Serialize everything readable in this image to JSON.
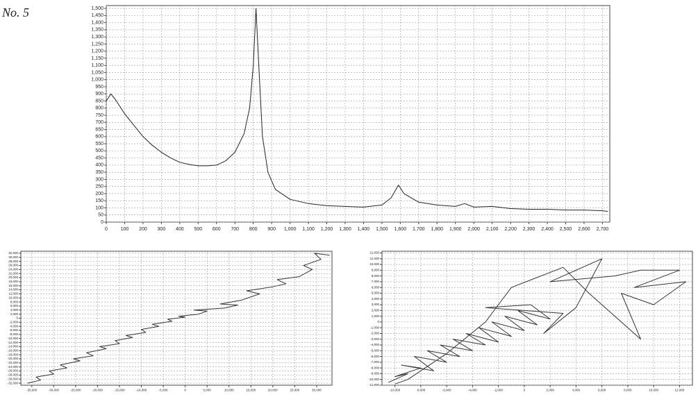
{
  "label": "No. 5",
  "chart_data": [
    {
      "type": "line",
      "grid": true,
      "color": "#222222",
      "x": [
        0,
        25,
        50,
        100,
        150,
        200,
        250,
        300,
        350,
        400,
        450,
        500,
        550,
        600,
        650,
        700,
        750,
        780,
        800,
        815,
        830,
        850,
        880,
        920,
        1000,
        1100,
        1200,
        1300,
        1400,
        1500,
        1550,
        1590,
        1620,
        1700,
        1800,
        1900,
        1950,
        2000,
        2100,
        2200,
        2300,
        2400,
        2500,
        2600,
        2700,
        2730
      ],
      "values": [
        850,
        900,
        860,
        760,
        680,
        600,
        540,
        490,
        450,
        420,
        405,
        395,
        395,
        400,
        430,
        490,
        620,
        800,
        1100,
        1500,
        1100,
        600,
        350,
        230,
        160,
        130,
        115,
        110,
        105,
        120,
        170,
        260,
        200,
        140,
        120,
        110,
        130,
        105,
        110,
        95,
        90,
        90,
        85,
        85,
        80,
        75
      ],
      "xlim": [
        0,
        2740
      ],
      "ylim": [
        0,
        1520
      ],
      "xticks": [
        0,
        100,
        200,
        300,
        400,
        500,
        600,
        700,
        800,
        900,
        {
          "value": 1000,
          "label": "1,000"
        },
        {
          "value": 1100,
          "label": "1,100"
        },
        {
          "value": 1200,
          "label": "1,200"
        },
        {
          "value": 1300,
          "label": "1,300"
        },
        {
          "value": 1400,
          "label": "1,400"
        },
        {
          "value": 1500,
          "label": "1,500"
        },
        {
          "value": 1600,
          "label": "1,600"
        },
        {
          "value": 1700,
          "label": "1,700"
        },
        {
          "value": 1800,
          "label": "1,800"
        },
        {
          "value": 1900,
          "label": "1,900"
        },
        {
          "value": 2000,
          "label": "2,000"
        },
        {
          "value": 2100,
          "label": "2,100"
        },
        {
          "value": 2200,
          "label": "2,200"
        },
        {
          "value": 2300,
          "label": "2,300"
        },
        {
          "value": 2400,
          "label": "2,400"
        },
        {
          "value": 2500,
          "label": "2,500"
        },
        {
          "value": 2600,
          "label": "2,600"
        },
        {
          "value": 2700,
          "label": "2,700"
        }
      ],
      "yticks": [
        0,
        50,
        100,
        150,
        200,
        250,
        300,
        350,
        400,
        450,
        500,
        550,
        600,
        650,
        700,
        750,
        800,
        850,
        900,
        950,
        {
          "value": 1000,
          "label": "1,000"
        },
        {
          "value": 1050,
          "label": "1,050"
        },
        {
          "value": 1100,
          "label": "1,100"
        },
        {
          "value": 1150,
          "label": "1,150"
        },
        {
          "value": 1200,
          "label": "1,200"
        },
        {
          "value": 1250,
          "label": "1,250"
        },
        {
          "value": 1300,
          "label": "1,300"
        },
        {
          "value": 1350,
          "label": "1,350"
        },
        {
          "value": 1400,
          "label": "1,400"
        },
        {
          "value": 1450,
          "label": "1,450"
        },
        {
          "value": 1500,
          "label": "1,500"
        }
      ]
    },
    {
      "type": "line",
      "grid": true,
      "color": "#333333",
      "x": [
        -36000,
        -33000,
        -34000,
        -30000,
        -31000,
        -27000,
        -28500,
        -24000,
        -25500,
        -21000,
        -22500,
        -18000,
        -19500,
        -15000,
        -16000,
        -12000,
        -13500,
        -9000,
        -10000,
        -6000,
        -7500,
        -3000,
        -4000,
        0,
        -1500,
        3000,
        5000,
        2000,
        9000,
        12000,
        8000,
        13000,
        17000,
        14000,
        20000,
        23000,
        21000,
        26000,
        29000,
        27000,
        31000,
        29500,
        33000
      ],
      "values": [
        -32000,
        -30500,
        -29000,
        -27500,
        -26000,
        -24500,
        -23000,
        -21000,
        -20000,
        -18500,
        -17000,
        -15000,
        -14000,
        -12500,
        -11000,
        -9500,
        -8500,
        -7000,
        -5500,
        -4000,
        -3000,
        -1500,
        -500,
        500,
        1000,
        2000,
        3500,
        4000,
        5000,
        6500,
        7000,
        9000,
        12000,
        13500,
        15500,
        17000,
        19000,
        20500,
        24000,
        26000,
        29000,
        32000,
        31000
      ],
      "xlim": [
        -37500,
        33500
      ],
      "ylim": [
        -33000,
        33000
      ],
      "xticks": [
        {
          "value": -35000,
          "label": "-35,000"
        },
        {
          "value": -30000,
          "label": "-30,000"
        },
        {
          "value": -25000,
          "label": "-25,000"
        },
        {
          "value": -20000,
          "label": "-20,000"
        },
        {
          "value": -15000,
          "label": "-15,000"
        },
        {
          "value": -10000,
          "label": "-10,000"
        },
        {
          "value": -5000,
          "label": "-5,000"
        },
        0,
        {
          "value": 5000,
          "label": "5,000"
        },
        {
          "value": 10000,
          "label": "10,000"
        },
        {
          "value": 15000,
          "label": "15,000"
        },
        {
          "value": 20000,
          "label": "20,000"
        },
        {
          "value": 25000,
          "label": "25,000"
        },
        {
          "value": 30000,
          "label": "30,000"
        }
      ],
      "yticks": [
        {
          "value": -32000,
          "label": "-32,000"
        },
        {
          "value": -30000,
          "label": "-30,000"
        },
        {
          "value": -28000,
          "label": "-28,000"
        },
        {
          "value": -26000,
          "label": "-26,000"
        },
        {
          "value": -24000,
          "label": "-24,000"
        },
        {
          "value": -22000,
          "label": "-22,000"
        },
        {
          "value": -20000,
          "label": "-20,000"
        },
        {
          "value": -18000,
          "label": "-18,000"
        },
        {
          "value": -16000,
          "label": "-16,000"
        },
        {
          "value": -14000,
          "label": "-14,000"
        },
        {
          "value": -12000,
          "label": "-12,000"
        },
        {
          "value": -10000,
          "label": "-10,000"
        },
        {
          "value": -8000,
          "label": "-8,000"
        },
        {
          "value": -6000,
          "label": "-6,000"
        },
        {
          "value": -4000,
          "label": "-4,000"
        },
        {
          "value": -2000,
          "label": "-2,000"
        },
        0,
        {
          "value": 2000,
          "label": "2,000"
        },
        {
          "value": 4000,
          "label": "4,000"
        },
        {
          "value": 6000,
          "label": "6,000"
        },
        {
          "value": 8000,
          "label": "8,000"
        },
        {
          "value": 10000,
          "label": "10,000"
        },
        {
          "value": 12000,
          "label": "12,000"
        },
        {
          "value": 14000,
          "label": "14,000"
        },
        {
          "value": 16000,
          "label": "16,000"
        },
        {
          "value": 18000,
          "label": "18,000"
        },
        {
          "value": 20000,
          "label": "20,000"
        },
        {
          "value": 22000,
          "label": "22,000"
        },
        {
          "value": 24000,
          "label": "24,000"
        },
        {
          "value": 26000,
          "label": "26,000"
        },
        {
          "value": 28000,
          "label": "28,000"
        },
        {
          "value": 30000,
          "label": "30,000"
        },
        {
          "value": 32000,
          "label": "32,000"
        }
      ]
    },
    {
      "type": "line",
      "grid": true,
      "color": "#333333",
      "x": [
        -10500,
        -9000,
        -10000,
        -8000,
        -9500,
        -7000,
        -8500,
        -6000,
        -7500,
        -5000,
        -6500,
        -4000,
        -5500,
        -3000,
        -4500,
        -2000,
        -3500,
        -1000,
        -2500,
        0,
        -1500,
        1000,
        -500,
        2000,
        500,
        -3000,
        3000,
        1500,
        4000,
        6000,
        2000,
        7000,
        9000,
        12000,
        8500,
        12500,
        10000,
        7500,
        9000,
        5000,
        3000,
        -1000,
        -2000,
        -3000,
        -6000,
        -9000,
        -10000
      ],
      "values": [
        -10500,
        -9000,
        -9500,
        -8000,
        -7500,
        -8500,
        -6000,
        -7000,
        -5000,
        -6000,
        -4000,
        -5000,
        -3000,
        -4000,
        -2000,
        -3500,
        -1000,
        -2500,
        0,
        -1500,
        1000,
        -500,
        2000,
        500,
        3000,
        2500,
        1500,
        -2000,
        2500,
        11000,
        7000,
        8000,
        9000,
        9000,
        6000,
        7000,
        3000,
        5000,
        -3000,
        5000,
        9500,
        6000,
        3000,
        0,
        -5500,
        -10000,
        -10800
      ],
      "xlim": [
        -11000,
        13000
      ],
      "ylim": [
        -11000,
        12300
      ],
      "xticks": [
        {
          "value": -10000,
          "label": "-10,000"
        },
        {
          "value": -8000,
          "label": "-8,000"
        },
        {
          "value": -6000,
          "label": "-6,000"
        },
        {
          "value": -4000,
          "label": "-4,000"
        },
        {
          "value": -2000,
          "label": "-2,000"
        },
        0,
        {
          "value": 2000,
          "label": "2,000"
        },
        {
          "value": 4000,
          "label": "4,000"
        },
        {
          "value": 6000,
          "label": "6,000"
        },
        {
          "value": 8000,
          "label": "8,000"
        },
        {
          "value": 10000,
          "label": "10,000"
        },
        {
          "value": 12000,
          "label": "12,000"
        }
      ],
      "yticks": [
        {
          "value": -11000,
          "label": "-11,000"
        },
        {
          "value": -10000,
          "label": "-10,000"
        },
        {
          "value": -9000,
          "label": "-9,000"
        },
        {
          "value": -8000,
          "label": "-8,000"
        },
        {
          "value": -7000,
          "label": "-7,000"
        },
        {
          "value": -6000,
          "label": "-6,000"
        },
        {
          "value": -5000,
          "label": "-5,000"
        },
        {
          "value": -4000,
          "label": "-4,000"
        },
        {
          "value": -3000,
          "label": "-3,000"
        },
        {
          "value": -2000,
          "label": "-2,000"
        },
        {
          "value": -1000,
          "label": "-1,000"
        },
        0,
        {
          "value": 1000,
          "label": "1,000"
        },
        {
          "value": 2000,
          "label": "2,000"
        },
        {
          "value": 3000,
          "label": "3,000"
        },
        {
          "value": 4000,
          "label": "4,000"
        },
        {
          "value": 5000,
          "label": "5,000"
        },
        {
          "value": 6000,
          "label": "6,000"
        },
        {
          "value": 7000,
          "label": "7,000"
        },
        {
          "value": 8000,
          "label": "8,000"
        },
        {
          "value": 9000,
          "label": "9,000"
        },
        {
          "value": 10000,
          "label": "10,000"
        },
        {
          "value": 11000,
          "label": "11,000"
        },
        {
          "value": 12000,
          "label": "12,000"
        }
      ]
    }
  ]
}
